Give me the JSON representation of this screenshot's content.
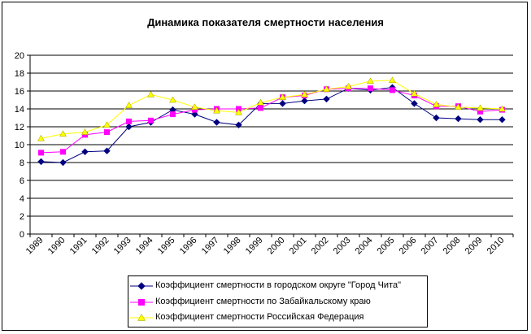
{
  "chart_data": {
    "type": "line",
    "title": "Динамика показателя смертности населения",
    "categories": [
      "1989",
      "1990",
      "1991",
      "1992",
      "1993",
      "1994",
      "1995",
      "1996",
      "1997",
      "1998",
      "1999",
      "2000",
      "2001",
      "2002",
      "2003",
      "2004",
      "2005",
      "2006",
      "2007",
      "2008",
      "2009",
      "2010"
    ],
    "ylim": [
      0,
      20
    ],
    "yticks": [
      0,
      2,
      4,
      6,
      8,
      10,
      12,
      14,
      16,
      18,
      20
    ],
    "grid": true,
    "legend_position": "bottom",
    "series": [
      {
        "name": "Коэффициент смертности в городском округе \"Город Чита\"",
        "color": "#000080",
        "marker": "diamond",
        "values": [
          8.1,
          8.0,
          9.2,
          9.3,
          12.0,
          12.5,
          13.9,
          13.4,
          12.5,
          12.2,
          14.6,
          14.6,
          14.9,
          15.1,
          16.3,
          16.1,
          16.4,
          14.6,
          13.0,
          12.9,
          12.8,
          12.8
        ]
      },
      {
        "name": "Коэффициент смертности по Забайкальскому краю",
        "color": "#ff00ff",
        "marker": "square",
        "values": [
          9.1,
          9.2,
          11.1,
          11.4,
          12.6,
          12.7,
          13.4,
          13.9,
          14.0,
          14.0,
          14.1,
          15.3,
          15.5,
          16.2,
          16.3,
          16.3,
          16.1,
          15.5,
          14.3,
          14.3,
          13.7,
          13.9
        ]
      },
      {
        "name": "Коэффициент смертности Российская Федерация",
        "color": "#ffff00",
        "marker": "triangle",
        "values": [
          10.7,
          11.2,
          11.4,
          12.2,
          14.4,
          15.6,
          15.0,
          14.2,
          13.8,
          13.6,
          14.7,
          15.3,
          15.6,
          16.2,
          16.5,
          17.1,
          17.2,
          15.7,
          14.5,
          14.2,
          14.1,
          14.0
        ]
      }
    ]
  }
}
